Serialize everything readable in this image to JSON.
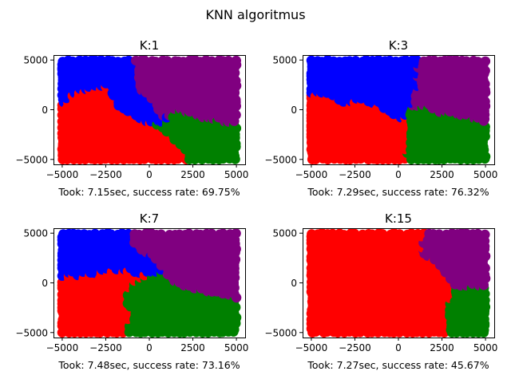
{
  "figure": {
    "suptitle": "KNN algoritmus"
  },
  "colors": {
    "blue": "#0000ff",
    "purple": "#800080",
    "red": "#ff0000",
    "green": "#008000"
  },
  "chart_data": [
    {
      "type": "scatter",
      "title": "K:1",
      "xlabel": "Took: 7.15sec, success rate: 69.75%",
      "ylabel": "",
      "xlim": [
        -5500,
        5500
      ],
      "ylim": [
        -5500,
        5500
      ],
      "xticks": [
        -5000,
        -2500,
        0,
        2500,
        5000
      ],
      "xtick_labels": [
        "−5000",
        "−2500",
        "0",
        "2500",
        "5000"
      ],
      "yticks": [
        -5000,
        0,
        5000
      ],
      "ytick_labels": [
        "−5000",
        "0",
        "5000"
      ],
      "grid": false,
      "regions": [
        {
          "color": "blue",
          "polygon": [
            [
              -5000,
              5000
            ],
            [
              -900,
              5000
            ],
            [
              -700,
              3500
            ],
            [
              -600,
              2000
            ],
            [
              0,
              1500
            ],
            [
              300,
              -200
            ],
            [
              800,
              -1200
            ],
            [
              300,
              -1600
            ],
            [
              -1000,
              -500
            ],
            [
              -1800,
              300
            ],
            [
              -2500,
              2500
            ],
            [
              -3800,
              2000
            ],
            [
              -4700,
              1200
            ],
            [
              -5000,
              500
            ]
          ]
        },
        {
          "color": "purple",
          "polygon": [
            [
              -900,
              5000
            ],
            [
              5000,
              5000
            ],
            [
              5000,
              -1500
            ],
            [
              3000,
              -800
            ],
            [
              1500,
              0
            ],
            [
              500,
              -200
            ],
            [
              0,
              1500
            ],
            [
              -600,
              2000
            ],
            [
              -700,
              3500
            ]
          ]
        },
        {
          "color": "red",
          "polygon": [
            [
              -5000,
              500
            ],
            [
              -4700,
              1200
            ],
            [
              -3800,
              2000
            ],
            [
              -2500,
              2500
            ],
            [
              -1800,
              300
            ],
            [
              -1000,
              -500
            ],
            [
              300,
              -1600
            ],
            [
              1300,
              -2600
            ],
            [
              1600,
              -3600
            ],
            [
              2200,
              -4300
            ],
            [
              2200,
              -5000
            ],
            [
              -5000,
              -5000
            ]
          ]
        },
        {
          "color": "green",
          "polygon": [
            [
              300,
              -1600
            ],
            [
              800,
              -1200
            ],
            [
              1500,
              0
            ],
            [
              3000,
              -800
            ],
            [
              5000,
              -1500
            ],
            [
              5000,
              -5000
            ],
            [
              2200,
              -5000
            ],
            [
              2200,
              -4300
            ],
            [
              1600,
              -3600
            ],
            [
              1300,
              -2600
            ]
          ]
        }
      ]
    },
    {
      "type": "scatter",
      "title": "K:3",
      "xlabel": "Took: 7.29sec, success rate: 76.32%",
      "ylabel": "",
      "xlim": [
        -5500,
        5500
      ],
      "ylim": [
        -5500,
        5500
      ],
      "xticks": [
        -5000,
        -2500,
        0,
        2500,
        5000
      ],
      "xtick_labels": [
        "−5000",
        "−2500",
        "0",
        "2500",
        "5000"
      ],
      "yticks": [
        -5000,
        0,
        5000
      ],
      "ytick_labels": [
        "−5000",
        "0",
        "5000"
      ],
      "grid": false,
      "regions": [
        {
          "color": "blue",
          "polygon": [
            [
              -5000,
              5000
            ],
            [
              1100,
              5000
            ],
            [
              1100,
              2000
            ],
            [
              600,
              200
            ],
            [
              -200,
              -600
            ],
            [
              -1000,
              300
            ],
            [
              -1800,
              700
            ],
            [
              -3200,
              700
            ],
            [
              -4200,
              1500
            ],
            [
              -5000,
              1700
            ]
          ]
        },
        {
          "color": "purple",
          "polygon": [
            [
              1100,
              5000
            ],
            [
              5000,
              5000
            ],
            [
              5000,
              -1300
            ],
            [
              3000,
              -500
            ],
            [
              1400,
              200
            ],
            [
              600,
              200
            ],
            [
              1100,
              2000
            ]
          ]
        },
        {
          "color": "red",
          "polygon": [
            [
              -5000,
              1700
            ],
            [
              -4200,
              1500
            ],
            [
              -3200,
              700
            ],
            [
              -1800,
              700
            ],
            [
              -1000,
              300
            ],
            [
              -200,
              -600
            ],
            [
              600,
              -1100
            ],
            [
              700,
              -3000
            ],
            [
              400,
              -5000
            ],
            [
              -5000,
              -5000
            ]
          ]
        },
        {
          "color": "green",
          "polygon": [
            [
              600,
              200
            ],
            [
              1400,
              200
            ],
            [
              3000,
              -500
            ],
            [
              5000,
              -1300
            ],
            [
              5000,
              -5000
            ],
            [
              400,
              -5000
            ],
            [
              700,
              -3000
            ],
            [
              600,
              -1100
            ]
          ]
        }
      ]
    },
    {
      "type": "scatter",
      "title": "K:7",
      "xlabel": "Took: 7.48sec, success rate: 73.16%",
      "ylabel": "",
      "xlim": [
        -5500,
        5500
      ],
      "ylim": [
        -5500,
        5500
      ],
      "xticks": [
        -5000,
        -2500,
        0,
        2500,
        5000
      ],
      "xtick_labels": [
        "−5000",
        "−2500",
        "0",
        "2500",
        "5000"
      ],
      "yticks": [
        -5000,
        0,
        5000
      ],
      "ytick_labels": [
        "−5000",
        "0",
        "5000"
      ],
      "grid": false,
      "regions": [
        {
          "color": "blue",
          "polygon": [
            [
              -5000,
              5000
            ],
            [
              -1200,
              5000
            ],
            [
              -600,
              3200
            ],
            [
              400,
              2400
            ],
            [
              800,
              1200
            ],
            [
              -100,
              800
            ],
            [
              -1200,
              1200
            ],
            [
              -2200,
              1400
            ],
            [
              -3500,
              800
            ],
            [
              -5000,
              700
            ]
          ]
        },
        {
          "color": "purple",
          "polygon": [
            [
              -1200,
              5000
            ],
            [
              5000,
              5000
            ],
            [
              5000,
              -1500
            ],
            [
              3000,
              -800
            ],
            [
              1500,
              0
            ],
            [
              800,
              1200
            ],
            [
              400,
              2400
            ],
            [
              -600,
              3200
            ]
          ]
        },
        {
          "color": "red",
          "polygon": [
            [
              -5000,
              700
            ],
            [
              -3500,
              800
            ],
            [
              -2200,
              1400
            ],
            [
              -1200,
              1200
            ],
            [
              -100,
              800
            ],
            [
              -1000,
              -200
            ],
            [
              -1500,
              -1500
            ],
            [
              -900,
              -3000
            ],
            [
              -1300,
              -5000
            ],
            [
              -5000,
              -5000
            ]
          ]
        },
        {
          "color": "green",
          "polygon": [
            [
              -100,
              800
            ],
            [
              800,
              1200
            ],
            [
              1500,
              0
            ],
            [
              3000,
              -800
            ],
            [
              5000,
              -1500
            ],
            [
              5000,
              -5000
            ],
            [
              -1300,
              -5000
            ],
            [
              -900,
              -3000
            ],
            [
              -1500,
              -1500
            ],
            [
              -1000,
              -200
            ]
          ]
        }
      ]
    },
    {
      "type": "scatter",
      "title": "K:15",
      "xlabel": "Took: 7.27sec, success rate: 45.67%",
      "ylabel": "",
      "xlim": [
        -5500,
        5500
      ],
      "ylim": [
        -5500,
        5500
      ],
      "xticks": [
        -5000,
        -2500,
        0,
        2500,
        5000
      ],
      "xtick_labels": [
        "−5000",
        "−2500",
        "0",
        "2500",
        "5000"
      ],
      "yticks": [
        -5000,
        0,
        5000
      ],
      "ytick_labels": [
        "−5000",
        "0",
        "5000"
      ],
      "grid": false,
      "regions": [
        {
          "color": "red",
          "polygon": [
            [
              -5000,
              5000
            ],
            [
              1500,
              5000
            ],
            [
              1300,
              3000
            ],
            [
              2500,
              1500
            ],
            [
              3300,
              -500
            ],
            [
              2800,
              -2500
            ],
            [
              2900,
              -5000
            ],
            [
              -5000,
              -5000
            ]
          ]
        },
        {
          "color": "purple",
          "polygon": [
            [
              1500,
              5000
            ],
            [
              5000,
              5000
            ],
            [
              5000,
              -500
            ],
            [
              3300,
              -500
            ],
            [
              2500,
              1500
            ],
            [
              1300,
              3000
            ]
          ]
        },
        {
          "color": "green",
          "polygon": [
            [
              3300,
              -500
            ],
            [
              5000,
              -500
            ],
            [
              5000,
              -5000
            ],
            [
              2900,
              -5000
            ],
            [
              2800,
              -2500
            ]
          ]
        }
      ]
    }
  ]
}
